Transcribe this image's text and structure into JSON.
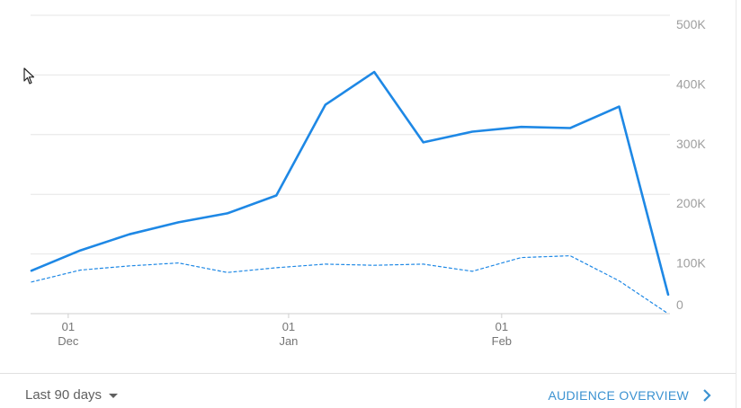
{
  "chart_data": {
    "type": "line",
    "y_ticks": [
      "500K",
      "400K",
      "300K",
      "200K",
      "100K",
      "0"
    ],
    "x_ticks": [
      {
        "day": "01",
        "month": "Dec",
        "index": 0.75
      },
      {
        "day": "01",
        "month": "Jan",
        "index": 5.25
      },
      {
        "day": "01",
        "month": "Feb",
        "index": 9.6
      }
    ],
    "ylim": [
      0,
      500000
    ],
    "grid": true,
    "legend": "none",
    "series": [
      {
        "style": "solid",
        "color": "#1e88e5",
        "values": [
          72000,
          106000,
          133000,
          153000,
          168000,
          198000,
          350000,
          405000,
          287000,
          305000,
          313000,
          311000,
          347000,
          32000
        ]
      },
      {
        "style": "dashed",
        "color": "#1e88e5",
        "values": [
          53000,
          73000,
          80000,
          85000,
          69000,
          77000,
          83000,
          81000,
          83000,
          71000,
          94000,
          97000,
          55000,
          0
        ]
      }
    ]
  },
  "footer": {
    "date_range": "Last 90 days",
    "link": "AUDIENCE OVERVIEW"
  },
  "icons": {
    "dropdown": "caret-down-icon",
    "link": "chevron-right-icon",
    "pointer": "mouse-cursor-icon"
  }
}
